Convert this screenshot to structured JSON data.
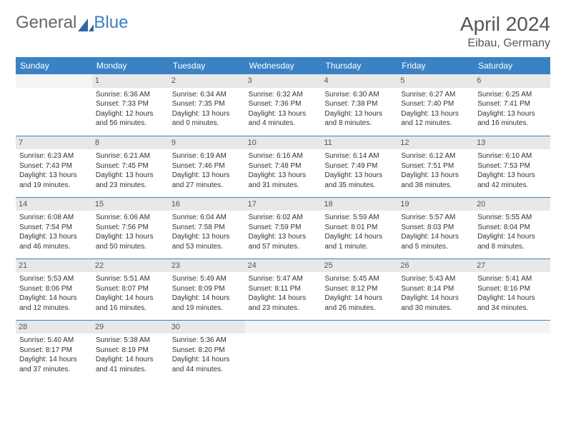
{
  "logo": {
    "text1": "General",
    "text2": "Blue"
  },
  "title": "April 2024",
  "location": "Eibau, Germany",
  "colors": {
    "header_bg": "#3b82c4",
    "header_text": "#ffffff",
    "daynum_bg": "#e8e8e8",
    "border": "#3b82c4",
    "body_text": "#333333",
    "title_text": "#555555"
  },
  "weekdays": [
    "Sunday",
    "Monday",
    "Tuesday",
    "Wednesday",
    "Thursday",
    "Friday",
    "Saturday"
  ],
  "weeks": [
    [
      {
        "n": "",
        "empty": true
      },
      {
        "n": "1",
        "sr": "Sunrise: 6:36 AM",
        "ss": "Sunset: 7:33 PM",
        "dl": "Daylight: 12 hours and 56 minutes."
      },
      {
        "n": "2",
        "sr": "Sunrise: 6:34 AM",
        "ss": "Sunset: 7:35 PM",
        "dl": "Daylight: 13 hours and 0 minutes."
      },
      {
        "n": "3",
        "sr": "Sunrise: 6:32 AM",
        "ss": "Sunset: 7:36 PM",
        "dl": "Daylight: 13 hours and 4 minutes."
      },
      {
        "n": "4",
        "sr": "Sunrise: 6:30 AM",
        "ss": "Sunset: 7:38 PM",
        "dl": "Daylight: 13 hours and 8 minutes."
      },
      {
        "n": "5",
        "sr": "Sunrise: 6:27 AM",
        "ss": "Sunset: 7:40 PM",
        "dl": "Daylight: 13 hours and 12 minutes."
      },
      {
        "n": "6",
        "sr": "Sunrise: 6:25 AM",
        "ss": "Sunset: 7:41 PM",
        "dl": "Daylight: 13 hours and 16 minutes."
      }
    ],
    [
      {
        "n": "7",
        "sr": "Sunrise: 6:23 AM",
        "ss": "Sunset: 7:43 PM",
        "dl": "Daylight: 13 hours and 19 minutes."
      },
      {
        "n": "8",
        "sr": "Sunrise: 6:21 AM",
        "ss": "Sunset: 7:45 PM",
        "dl": "Daylight: 13 hours and 23 minutes."
      },
      {
        "n": "9",
        "sr": "Sunrise: 6:19 AM",
        "ss": "Sunset: 7:46 PM",
        "dl": "Daylight: 13 hours and 27 minutes."
      },
      {
        "n": "10",
        "sr": "Sunrise: 6:16 AM",
        "ss": "Sunset: 7:48 PM",
        "dl": "Daylight: 13 hours and 31 minutes."
      },
      {
        "n": "11",
        "sr": "Sunrise: 6:14 AM",
        "ss": "Sunset: 7:49 PM",
        "dl": "Daylight: 13 hours and 35 minutes."
      },
      {
        "n": "12",
        "sr": "Sunrise: 6:12 AM",
        "ss": "Sunset: 7:51 PM",
        "dl": "Daylight: 13 hours and 38 minutes."
      },
      {
        "n": "13",
        "sr": "Sunrise: 6:10 AM",
        "ss": "Sunset: 7:53 PM",
        "dl": "Daylight: 13 hours and 42 minutes."
      }
    ],
    [
      {
        "n": "14",
        "sr": "Sunrise: 6:08 AM",
        "ss": "Sunset: 7:54 PM",
        "dl": "Daylight: 13 hours and 46 minutes."
      },
      {
        "n": "15",
        "sr": "Sunrise: 6:06 AM",
        "ss": "Sunset: 7:56 PM",
        "dl": "Daylight: 13 hours and 50 minutes."
      },
      {
        "n": "16",
        "sr": "Sunrise: 6:04 AM",
        "ss": "Sunset: 7:58 PM",
        "dl": "Daylight: 13 hours and 53 minutes."
      },
      {
        "n": "17",
        "sr": "Sunrise: 6:02 AM",
        "ss": "Sunset: 7:59 PM",
        "dl": "Daylight: 13 hours and 57 minutes."
      },
      {
        "n": "18",
        "sr": "Sunrise: 5:59 AM",
        "ss": "Sunset: 8:01 PM",
        "dl": "Daylight: 14 hours and 1 minute."
      },
      {
        "n": "19",
        "sr": "Sunrise: 5:57 AM",
        "ss": "Sunset: 8:03 PM",
        "dl": "Daylight: 14 hours and 5 minutes."
      },
      {
        "n": "20",
        "sr": "Sunrise: 5:55 AM",
        "ss": "Sunset: 8:04 PM",
        "dl": "Daylight: 14 hours and 8 minutes."
      }
    ],
    [
      {
        "n": "21",
        "sr": "Sunrise: 5:53 AM",
        "ss": "Sunset: 8:06 PM",
        "dl": "Daylight: 14 hours and 12 minutes."
      },
      {
        "n": "22",
        "sr": "Sunrise: 5:51 AM",
        "ss": "Sunset: 8:07 PM",
        "dl": "Daylight: 14 hours and 16 minutes."
      },
      {
        "n": "23",
        "sr": "Sunrise: 5:49 AM",
        "ss": "Sunset: 8:09 PM",
        "dl": "Daylight: 14 hours and 19 minutes."
      },
      {
        "n": "24",
        "sr": "Sunrise: 5:47 AM",
        "ss": "Sunset: 8:11 PM",
        "dl": "Daylight: 14 hours and 23 minutes."
      },
      {
        "n": "25",
        "sr": "Sunrise: 5:45 AM",
        "ss": "Sunset: 8:12 PM",
        "dl": "Daylight: 14 hours and 26 minutes."
      },
      {
        "n": "26",
        "sr": "Sunrise: 5:43 AM",
        "ss": "Sunset: 8:14 PM",
        "dl": "Daylight: 14 hours and 30 minutes."
      },
      {
        "n": "27",
        "sr": "Sunrise: 5:41 AM",
        "ss": "Sunset: 8:16 PM",
        "dl": "Daylight: 14 hours and 34 minutes."
      }
    ],
    [
      {
        "n": "28",
        "sr": "Sunrise: 5:40 AM",
        "ss": "Sunset: 8:17 PM",
        "dl": "Daylight: 14 hours and 37 minutes."
      },
      {
        "n": "29",
        "sr": "Sunrise: 5:38 AM",
        "ss": "Sunset: 8:19 PM",
        "dl": "Daylight: 14 hours and 41 minutes."
      },
      {
        "n": "30",
        "sr": "Sunrise: 5:36 AM",
        "ss": "Sunset: 8:20 PM",
        "dl": "Daylight: 14 hours and 44 minutes."
      },
      {
        "n": "",
        "empty": true
      },
      {
        "n": "",
        "empty": true
      },
      {
        "n": "",
        "empty": true
      },
      {
        "n": "",
        "empty": true
      }
    ]
  ]
}
